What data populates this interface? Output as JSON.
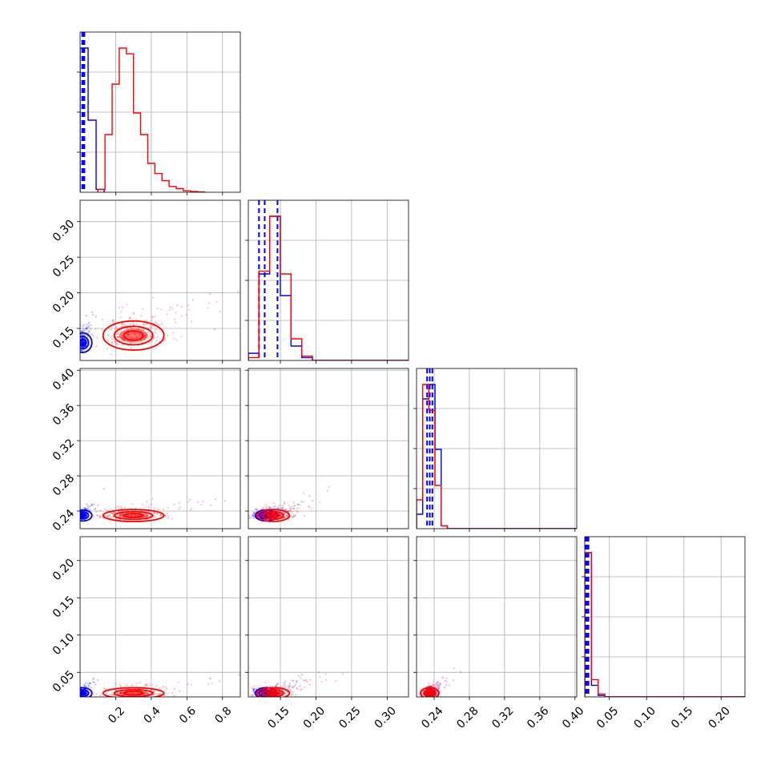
{
  "chart_data": {
    "type": "corner",
    "grid": true,
    "colors": {
      "series_a": "#0000ff",
      "series_b": "#ff0000"
    },
    "parameters": [
      {
        "ticks": [
          0.2,
          0.4,
          0.6,
          0.8
        ],
        "tick_labels": [
          "0.2",
          "0.4",
          "0.6",
          "0.8"
        ],
        "range": [
          0.0,
          0.9
        ]
      },
      {
        "ticks": [
          0.15,
          0.2,
          0.25,
          0.3
        ],
        "tick_labels": [
          "0.15",
          "0.20",
          "0.25",
          "0.30"
        ],
        "range": [
          0.105,
          0.33
        ]
      },
      {
        "ticks": [
          0.24,
          0.28,
          0.32,
          0.36,
          0.4
        ],
        "tick_labels": [
          "0.24",
          "0.28",
          "0.32",
          "0.36",
          "0.40"
        ],
        "range": [
          0.22,
          0.402
        ]
      },
      {
        "ticks": [
          0.05,
          0.1,
          0.15,
          0.2
        ],
        "tick_labels": [
          "0.05",
          "0.10",
          "0.15",
          "0.20"
        ],
        "range": [
          0.017,
          0.232
        ]
      }
    ],
    "series": [
      {
        "color": "blue",
        "centers": [
          0.015,
          0.13,
          0.235,
          0.022
        ],
        "spreads": [
          0.012,
          0.008,
          0.003,
          0.003
        ],
        "quantile_lines": [
          [
            0.012,
            0.018,
            0.024
          ],
          [
            0.12,
            0.128,
            0.146
          ],
          [
            0.232,
            0.235,
            0.238
          ],
          [
            0.018,
            0.02,
            0.022
          ]
        ],
        "histograms": [
          {
            "edges": [
              0.0,
              0.045,
              0.09,
              0.135
            ],
            "counts": [
              1.0,
              0.5,
              0.02
            ]
          },
          {
            "edges": [
              0.105,
              0.12,
              0.135,
              0.15,
              0.165,
              0.18,
              0.195,
              0.33
            ],
            "counts": [
              0.05,
              0.6,
              1.0,
              0.45,
              0.1,
              0.02,
              0.0
            ]
          },
          {
            "edges": [
              0.22,
              0.227,
              0.234,
              0.241,
              0.248,
              0.255,
              0.402
            ],
            "counts": [
              0.1,
              0.9,
              1.0,
              0.55,
              0.02,
              0.0
            ]
          },
          {
            "edges": [
              0.017,
              0.026,
              0.035,
              0.044,
              0.232
            ],
            "counts": [
              1.0,
              0.08,
              0.01,
              0.0
            ]
          }
        ]
      },
      {
        "color": "red",
        "centers": [
          0.3,
          0.14,
          0.235,
          0.022
        ],
        "spreads": [
          0.09,
          0.012,
          0.004,
          0.004
        ],
        "quantile_lines": [],
        "histograms": [
          {
            "edges": [
              0.1,
              0.14,
              0.18,
              0.22,
              0.26,
              0.3,
              0.34,
              0.38,
              0.42,
              0.46,
              0.5,
              0.54,
              0.58,
              0.62,
              0.66,
              0.7
            ],
            "counts": [
              0.02,
              0.4,
              0.75,
              1.0,
              0.96,
              0.55,
              0.4,
              0.2,
              0.13,
              0.08,
              0.04,
              0.025,
              0.01,
              0.005,
              0.002
            ]
          },
          {
            "edges": [
              0.105,
              0.12,
              0.135,
              0.15,
              0.165,
              0.18,
              0.195,
              0.33
            ],
            "counts": [
              0.02,
              0.62,
              1.0,
              0.6,
              0.15,
              0.03,
              0.0
            ]
          },
          {
            "edges": [
              0.22,
              0.227,
              0.234,
              0.241,
              0.248,
              0.255,
              0.402
            ],
            "counts": [
              0.2,
              1.0,
              0.82,
              0.3,
              0.02,
              0.0
            ]
          },
          {
            "edges": [
              0.017,
              0.026,
              0.035,
              0.044,
              0.232
            ],
            "counts": [
              1.0,
              0.12,
              0.02,
              0.0
            ]
          }
        ]
      }
    ]
  }
}
